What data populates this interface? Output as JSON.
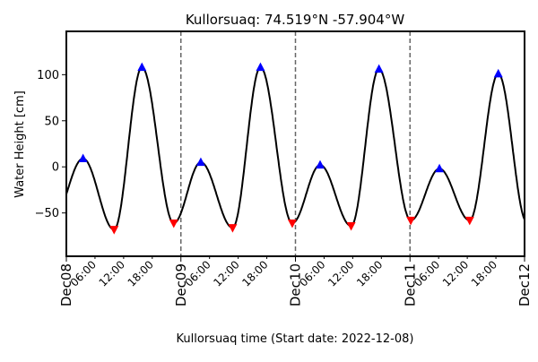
{
  "chart_data": {
    "type": "line",
    "title": "Kullorsuaq: 74.519°N -57.904°W",
    "xlabel": "Kullorsuaq time (Start date: 2022-12-08)",
    "ylabel": "Water Height [cm]",
    "xlim": [
      "2022-12-08 00:00",
      "2022-12-12 00:00"
    ],
    "ylim": [
      -97,
      147
    ],
    "x_ticks_major": [
      {
        "t": "2022-12-08 00:00",
        "label": "Dec08"
      },
      {
        "t": "2022-12-09 00:00",
        "label": "Dec09"
      },
      {
        "t": "2022-12-10 00:00",
        "label": "Dec10"
      },
      {
        "t": "2022-12-11 00:00",
        "label": "Dec11"
      },
      {
        "t": "2022-12-12 00:00",
        "label": "Dec12"
      }
    ],
    "x_ticks_minor": [
      {
        "t": "2022-12-08 06:00",
        "label": "06:00"
      },
      {
        "t": "2022-12-08 12:00",
        "label": "12:00"
      },
      {
        "t": "2022-12-08 18:00",
        "label": "18:00"
      },
      {
        "t": "2022-12-09 06:00",
        "label": "06:00"
      },
      {
        "t": "2022-12-09 12:00",
        "label": "12:00"
      },
      {
        "t": "2022-12-09 18:00",
        "label": "18:00"
      },
      {
        "t": "2022-12-10 06:00",
        "label": "06:00"
      },
      {
        "t": "2022-12-10 12:00",
        "label": "12:00"
      },
      {
        "t": "2022-12-10 18:00",
        "label": "18:00"
      },
      {
        "t": "2022-12-11 06:00",
        "label": "06:00"
      },
      {
        "t": "2022-12-11 12:00",
        "label": "12:00"
      },
      {
        "t": "2022-12-11 18:00",
        "label": "18:00"
      }
    ],
    "y_ticks": [
      {
        "v": -50,
        "label": "−50"
      },
      {
        "v": 0,
        "label": "0"
      },
      {
        "v": 50,
        "label": "50"
      },
      {
        "v": 100,
        "label": "100"
      }
    ],
    "day_separators": [
      "2022-12-09 00:00",
      "2022-12-10 00:00",
      "2022-12-11 00:00"
    ],
    "extrema": [
      {
        "t": "2022-12-08 03:30",
        "v": 9,
        "kind": "high"
      },
      {
        "t": "2022-12-08 10:00",
        "v": -68,
        "kind": "low"
      },
      {
        "t": "2022-12-08 15:50",
        "v": 108,
        "kind": "high"
      },
      {
        "t": "2022-12-08 22:30",
        "v": -61,
        "kind": "low"
      },
      {
        "t": "2022-12-09 04:10",
        "v": 5,
        "kind": "high"
      },
      {
        "t": "2022-12-09 10:50",
        "v": -66,
        "kind": "low"
      },
      {
        "t": "2022-12-09 16:40",
        "v": 108,
        "kind": "high"
      },
      {
        "t": "2022-12-09 23:20",
        "v": -61,
        "kind": "low"
      },
      {
        "t": "2022-12-10 05:10",
        "v": 2,
        "kind": "high"
      },
      {
        "t": "2022-12-10 11:40",
        "v": -64,
        "kind": "low"
      },
      {
        "t": "2022-12-10 17:30",
        "v": 106,
        "kind": "high"
      },
      {
        "t": "2022-12-11 00:10",
        "v": -58,
        "kind": "low"
      },
      {
        "t": "2022-12-11 06:10",
        "v": -2,
        "kind": "high"
      },
      {
        "t": "2022-12-11 12:30",
        "v": -58,
        "kind": "low"
      },
      {
        "t": "2022-12-11 18:30",
        "v": 101,
        "kind": "high"
      }
    ],
    "line_color": "#000000",
    "high_marker_color": "#0000ff",
    "low_marker_color": "#ff0000",
    "separator_color": "#666666",
    "grid": false,
    "legend": "none"
  }
}
